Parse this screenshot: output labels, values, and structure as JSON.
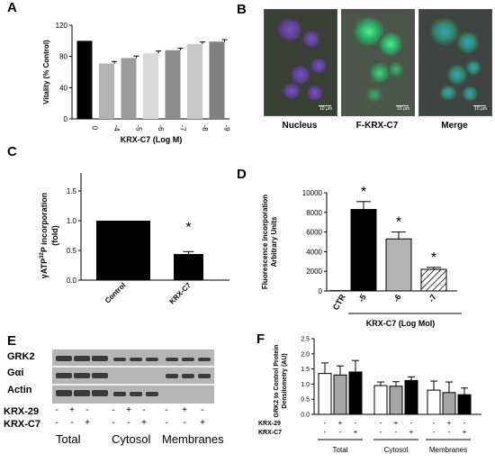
{
  "panels": {
    "A": {
      "label": "A",
      "ylabel": "Vitality (% Control)",
      "xlabel": "KRX-C7 (Log M)",
      "yticks": [
        "0",
        "40",
        "80",
        "120"
      ],
      "colors": [
        "#000000",
        "#b3b3b3",
        "#9c9c9c",
        "#d9d9d9",
        "#8c8c8c",
        "#c8c8c8",
        "#808080"
      ]
    },
    "B": {
      "label": "B",
      "images": [
        "Nucleus",
        "F-KRX-C7",
        "Merge"
      ],
      "scale": "10 μm"
    },
    "C": {
      "label": "C",
      "ylabel_pre": "γATP",
      "ylabel_sup": "32",
      "ylabel_post": "P incorporation",
      "ylabel2": "(fold)",
      "yticks": [
        "0.0",
        "0.5",
        "1.0",
        "1.5"
      ],
      "star": "*"
    },
    "D": {
      "label": "D",
      "ylabel": "Fluorescence incorporation",
      "ylabel2": "Arbitrary Units",
      "xlabel": "KRX-C7 (Log Mol)",
      "yticks": [
        "0",
        "2000",
        "4000",
        "6000",
        "8000",
        "10000"
      ],
      "star": "*"
    },
    "E": {
      "label": "E",
      "rows": [
        "GRK2",
        "Gαi",
        "Actin"
      ],
      "treatments": [
        "KRX-29",
        "KRX-C7"
      ],
      "groups": [
        "Total",
        "Cytosol",
        "Membranes"
      ],
      "signs": [
        [
          "-",
          "+",
          "-",
          "-",
          "+",
          "-",
          "-",
          "+",
          "-"
        ],
        [
          "-",
          "-",
          "+",
          "-",
          "-",
          "+",
          "-",
          "-",
          "+"
        ]
      ]
    },
    "F": {
      "label": "F",
      "ylabel": "GRK2 to Control Protein",
      "ylabel2": "Densitometry (AU)",
      "yticks": [
        "0.0",
        "0.5",
        "1.0",
        "1.5",
        "2.0",
        "2.5"
      ],
      "treatments": [
        "KRX-29",
        "KRX-C7"
      ],
      "groups": [
        "Total",
        "Cytosol",
        "Membranes"
      ],
      "signs": [
        [
          "-",
          "+",
          "-",
          "-",
          "+",
          "-",
          "-",
          "+",
          "-"
        ],
        [
          "-",
          "-",
          "+",
          "-",
          "-",
          "+",
          "-",
          "-",
          "+"
        ]
      ]
    }
  },
  "chart_data": [
    {
      "type": "bar",
      "panel": "A",
      "categories": [
        "0",
        "-4",
        "-5",
        "-6",
        "-7",
        "-8",
        "-9"
      ],
      "values": [
        100,
        71,
        78,
        84,
        88,
        96,
        99
      ],
      "errors": [
        0,
        2.5,
        2.5,
        3,
        2.5,
        2.5,
        2.5
      ],
      "xlabel": "KRX-C7 (Log M)",
      "ylabel": "Vitality (% Control)",
      "ylim": [
        0,
        120
      ]
    },
    {
      "type": "bar",
      "panel": "C",
      "categories": [
        "Control",
        "KRX-C7"
      ],
      "values": [
        1.0,
        0.44
      ],
      "errors": [
        0,
        0.04
      ],
      "ylabel": "γATP32P incorporation (fold)",
      "ylim": [
        0,
        1.5
      ]
    },
    {
      "type": "bar",
      "panel": "D",
      "categories": [
        "CTR",
        "-5",
        "-6",
        "-7"
      ],
      "values": [
        30,
        8300,
        5300,
        2200
      ],
      "errors": [
        0,
        800,
        700,
        200
      ],
      "xlabel": "KRX-C7 (Log Mol)",
      "ylabel": "Fluorescence incorporation Arbitrary Units",
      "ylim": [
        0,
        10000
      ]
    },
    {
      "type": "bar",
      "panel": "F",
      "categories": [
        "Total",
        "Cytosol",
        "Membranes"
      ],
      "series": [
        {
          "name": "- / -",
          "values": [
            1.35,
            0.95,
            0.8
          ],
          "errors": [
            0.35,
            0.12,
            0.3
          ]
        },
        {
          "name": "KRX-29 +",
          "values": [
            1.3,
            0.93,
            0.72
          ],
          "errors": [
            0.3,
            0.15,
            0.35
          ]
        },
        {
          "name": "KRX-C7 +",
          "values": [
            1.4,
            1.12,
            0.65
          ],
          "errors": [
            0.38,
            0.12,
            0.22
          ]
        }
      ],
      "ylabel": "GRK2 to Control Protein Densitometry (AU)",
      "ylim": [
        0,
        2.5
      ]
    }
  ]
}
